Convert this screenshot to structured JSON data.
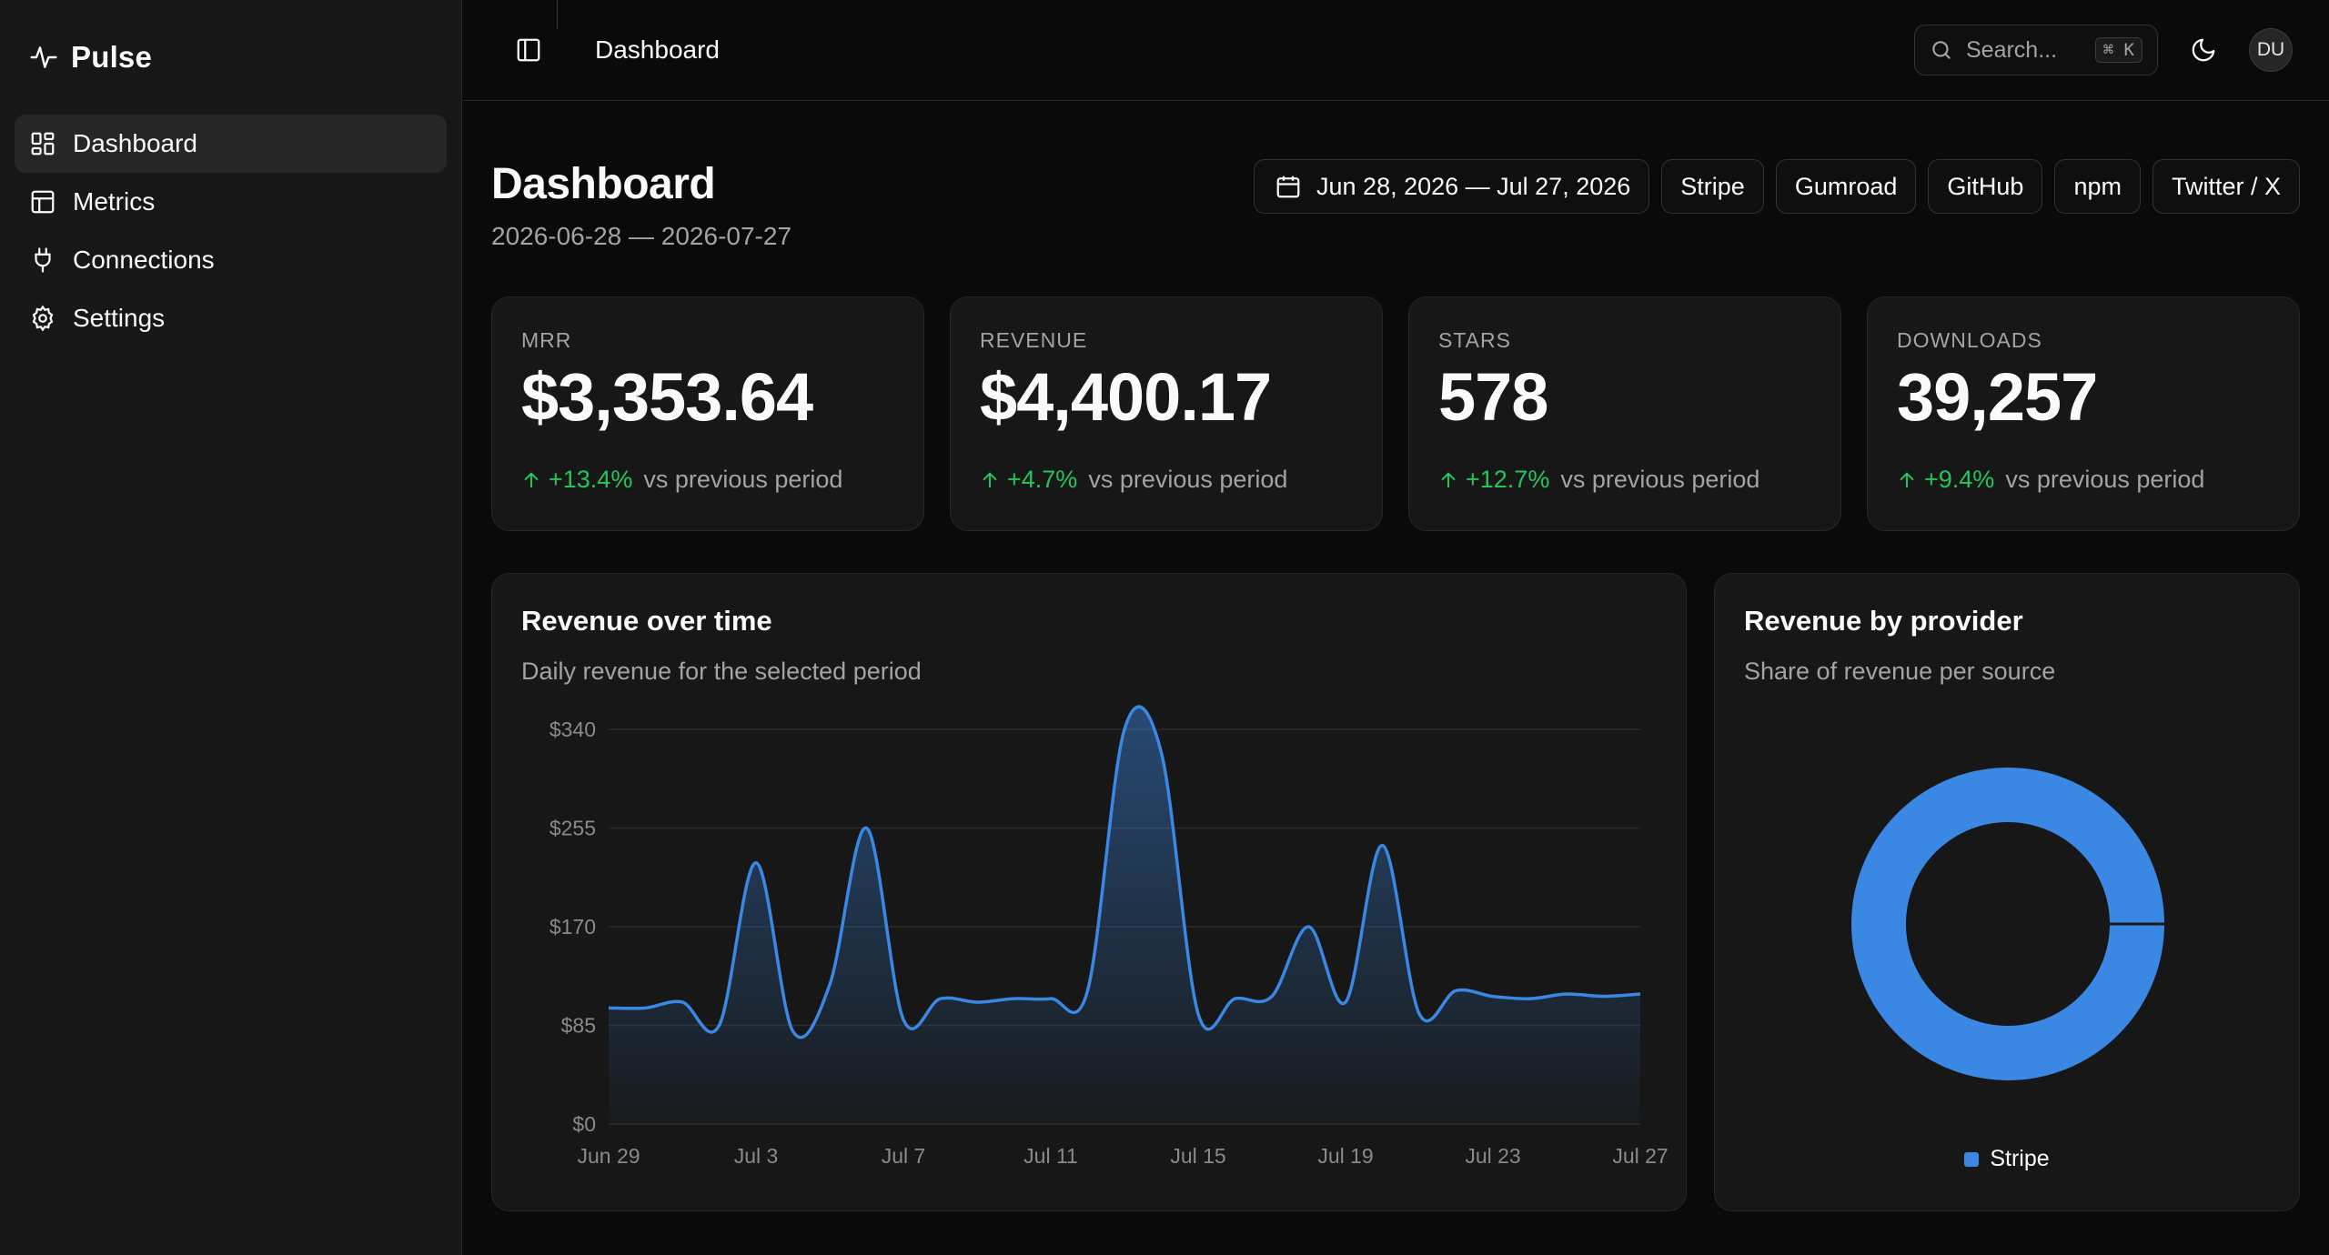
{
  "brand": {
    "name": "Pulse"
  },
  "sidebar": {
    "items": [
      {
        "label": "Dashboard",
        "icon": "dashboard-icon",
        "active": true
      },
      {
        "label": "Metrics",
        "icon": "table-icon",
        "active": false
      },
      {
        "label": "Connections",
        "icon": "plug-icon",
        "active": false
      },
      {
        "label": "Settings",
        "icon": "gear-icon",
        "active": false
      }
    ]
  },
  "topbar": {
    "breadcrumb": "Dashboard",
    "search_placeholder": "Search...",
    "search_shortcut": "⌘ K",
    "avatar_initials": "DU"
  },
  "page": {
    "title": "Dashboard",
    "subtitle": "2026-06-28 — 2026-07-27",
    "date_range": "Jun 28, 2026 — Jul 27, 2026",
    "providers": [
      "Stripe",
      "Gumroad",
      "GitHub",
      "npm",
      "Twitter / X"
    ]
  },
  "kpis": [
    {
      "label": "MRR",
      "value": "$3,353.64",
      "delta": "+13.4%",
      "suffix": "vs previous period"
    },
    {
      "label": "REVENUE",
      "value": "$4,400.17",
      "delta": "+4.7%",
      "suffix": "vs previous period"
    },
    {
      "label": "STARS",
      "value": "578",
      "delta": "+12.7%",
      "suffix": "vs previous period"
    },
    {
      "label": "DOWNLOADS",
      "value": "39,257",
      "delta": "+9.4%",
      "suffix": "vs previous period"
    }
  ],
  "colors": {
    "accent": "#3b87e4",
    "positive": "#22c55e",
    "card": "#171717",
    "border": "#262626"
  },
  "line_card": {
    "title": "Revenue over time",
    "subtitle": "Daily revenue for the selected period"
  },
  "pie_card": {
    "title": "Revenue by provider",
    "subtitle": "Share of revenue per source"
  },
  "chart_data": [
    {
      "type": "area",
      "title": "Revenue over time",
      "x_tick_labels": [
        "Jun 29",
        "Jul 3",
        "Jul 7",
        "Jul 11",
        "Jul 15",
        "Jul 19",
        "Jul 23",
        "Jul 27"
      ],
      "y_tick_labels": [
        "$340",
        "$255",
        "$170",
        "$85",
        "$0"
      ],
      "ylim": [
        0,
        340
      ],
      "grid": true,
      "x": [
        "Jun 29",
        "Jun 30",
        "Jul 1",
        "Jul 2",
        "Jul 3",
        "Jul 4",
        "Jul 5",
        "Jul 6",
        "Jul 7",
        "Jul 8",
        "Jul 9",
        "Jul 10",
        "Jul 11",
        "Jul 12",
        "Jul 13",
        "Jul 14",
        "Jul 15",
        "Jul 16",
        "Jul 17",
        "Jul 18",
        "Jul 19",
        "Jul 20",
        "Jul 21",
        "Jul 22",
        "Jul 23",
        "Jul 24",
        "Jul 25",
        "Jul 26",
        "Jul 27"
      ],
      "values": [
        100,
        100,
        105,
        85,
        225,
        80,
        120,
        255,
        90,
        108,
        105,
        108,
        108,
        115,
        340,
        320,
        95,
        108,
        110,
        170,
        105,
        240,
        95,
        115,
        110,
        108,
        112,
        110,
        112
      ],
      "color": "#3b87e4"
    },
    {
      "type": "pie",
      "title": "Revenue by provider",
      "categories": [
        "Stripe"
      ],
      "values": [
        100
      ],
      "colors": [
        "#3b87e4"
      ],
      "legend": "bottom"
    }
  ]
}
